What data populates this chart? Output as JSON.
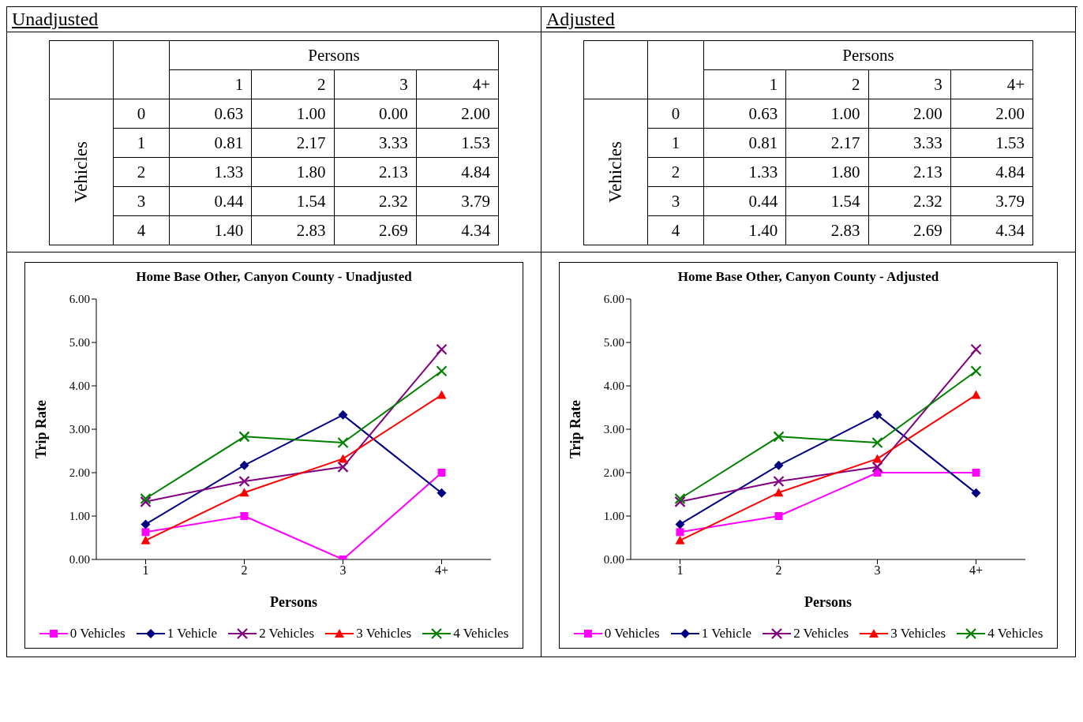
{
  "chart_data": [
    {
      "type": "heatmap",
      "title": "Unadjusted",
      "xlabel": "Persons",
      "ylabel": "Vehicles",
      "categories": [
        "1",
        "2",
        "3",
        "4+"
      ],
      "y_categories": [
        "0",
        "1",
        "2",
        "3",
        "4"
      ],
      "cells": [
        [
          0.63,
          1.0,
          0.0,
          2.0
        ],
        [
          0.81,
          2.17,
          3.33,
          1.53
        ],
        [
          1.33,
          1.8,
          2.13,
          4.84
        ],
        [
          0.44,
          1.54,
          2.32,
          3.79
        ],
        [
          1.4,
          2.83,
          2.69,
          4.34
        ]
      ],
      "cell_labels": [
        [
          "0.63",
          "1.00",
          "0.00",
          "2.00"
        ],
        [
          "0.81",
          "2.17",
          "3.33",
          "1.53"
        ],
        [
          "1.33",
          "1.80",
          "2.13",
          "4.84"
        ],
        [
          "0.44",
          "1.54",
          "2.32",
          "3.79"
        ],
        [
          "1.40",
          "2.83",
          "2.69",
          "4.34"
        ]
      ]
    },
    {
      "type": "heatmap",
      "title": "Adjusted",
      "xlabel": "Persons",
      "ylabel": "Vehicles",
      "categories": [
        "1",
        "2",
        "3",
        "4+"
      ],
      "y_categories": [
        "0",
        "1",
        "2",
        "3",
        "4"
      ],
      "cells": [
        [
          0.63,
          1.0,
          2.0,
          2.0
        ],
        [
          0.81,
          2.17,
          3.33,
          1.53
        ],
        [
          1.33,
          1.8,
          2.13,
          4.84
        ],
        [
          0.44,
          1.54,
          2.32,
          3.79
        ],
        [
          1.4,
          2.83,
          2.69,
          4.34
        ]
      ],
      "cell_labels": [
        [
          "0.63",
          "1.00",
          "2.00",
          "2.00"
        ],
        [
          "0.81",
          "2.17",
          "3.33",
          "1.53"
        ],
        [
          "1.33",
          "1.80",
          "2.13",
          "4.84"
        ],
        [
          "0.44",
          "1.54",
          "2.32",
          "3.79"
        ],
        [
          "1.40",
          "2.83",
          "2.69",
          "4.34"
        ]
      ]
    },
    {
      "type": "line",
      "title": "Home Base Other, Canyon County - Unadjusted",
      "xlabel": "Persons",
      "ylabel": "Trip Rate",
      "categories": [
        "1",
        "2",
        "3",
        "4+"
      ],
      "ylim": [
        0,
        6
      ],
      "yticks": [
        {
          "value": 0,
          "label": "0.00"
        },
        {
          "value": 1,
          "label": "1.00"
        },
        {
          "value": 2,
          "label": "2.00"
        },
        {
          "value": 3,
          "label": "3.00"
        },
        {
          "value": 4,
          "label": "4.00"
        },
        {
          "value": 5,
          "label": "5.00"
        },
        {
          "value": 6,
          "label": "6.00"
        }
      ],
      "legend": "bottom",
      "line_style": "solid",
      "series": [
        {
          "name": "0 Vehicles",
          "color": "#ff00ff",
          "marker": "square",
          "values": [
            0.63,
            1.0,
            0.0,
            2.0
          ]
        },
        {
          "name": "1 Vehicle",
          "color": "#000080",
          "marker": "diamond",
          "values": [
            0.81,
            2.17,
            3.33,
            1.53
          ]
        },
        {
          "name": "2 Vehicles",
          "color": "#800080",
          "marker": "cross",
          "values": [
            1.33,
            1.8,
            2.13,
            4.84
          ]
        },
        {
          "name": "3 Vehicles",
          "color": "#ff0000",
          "marker": "triangle",
          "values": [
            0.44,
            1.54,
            2.32,
            3.79
          ]
        },
        {
          "name": "4 Vehicles",
          "color": "#008000",
          "marker": "cross",
          "values": [
            1.4,
            2.83,
            2.69,
            4.34
          ]
        }
      ]
    },
    {
      "type": "line",
      "title": "Home Base Other, Canyon County - Adjusted",
      "xlabel": "Persons",
      "ylabel": "Trip Rate",
      "categories": [
        "1",
        "2",
        "3",
        "4+"
      ],
      "ylim": [
        0,
        6
      ],
      "yticks": [
        {
          "value": 0,
          "label": "0.00"
        },
        {
          "value": 1,
          "label": "1.00"
        },
        {
          "value": 2,
          "label": "2.00"
        },
        {
          "value": 3,
          "label": "3.00"
        },
        {
          "value": 4,
          "label": "4.00"
        },
        {
          "value": 5,
          "label": "5.00"
        },
        {
          "value": 6,
          "label": "6.00"
        }
      ],
      "legend": "bottom",
      "line_style": "solid",
      "series": [
        {
          "name": "0 Vehicles",
          "color": "#ff00ff",
          "marker": "square",
          "values": [
            0.63,
            1.0,
            2.0,
            2.0
          ]
        },
        {
          "name": "1 Vehicle",
          "color": "#000080",
          "marker": "diamond",
          "values": [
            0.81,
            2.17,
            3.33,
            1.53
          ]
        },
        {
          "name": "2 Vehicles",
          "color": "#800080",
          "marker": "cross",
          "values": [
            1.33,
            1.8,
            2.13,
            4.84
          ]
        },
        {
          "name": "3 Vehicles",
          "color": "#ff0000",
          "marker": "triangle",
          "values": [
            0.44,
            1.54,
            2.32,
            3.79
          ]
        },
        {
          "name": "4 Vehicles",
          "color": "#008000",
          "marker": "cross",
          "values": [
            1.4,
            2.83,
            2.69,
            4.34
          ]
        }
      ]
    }
  ]
}
